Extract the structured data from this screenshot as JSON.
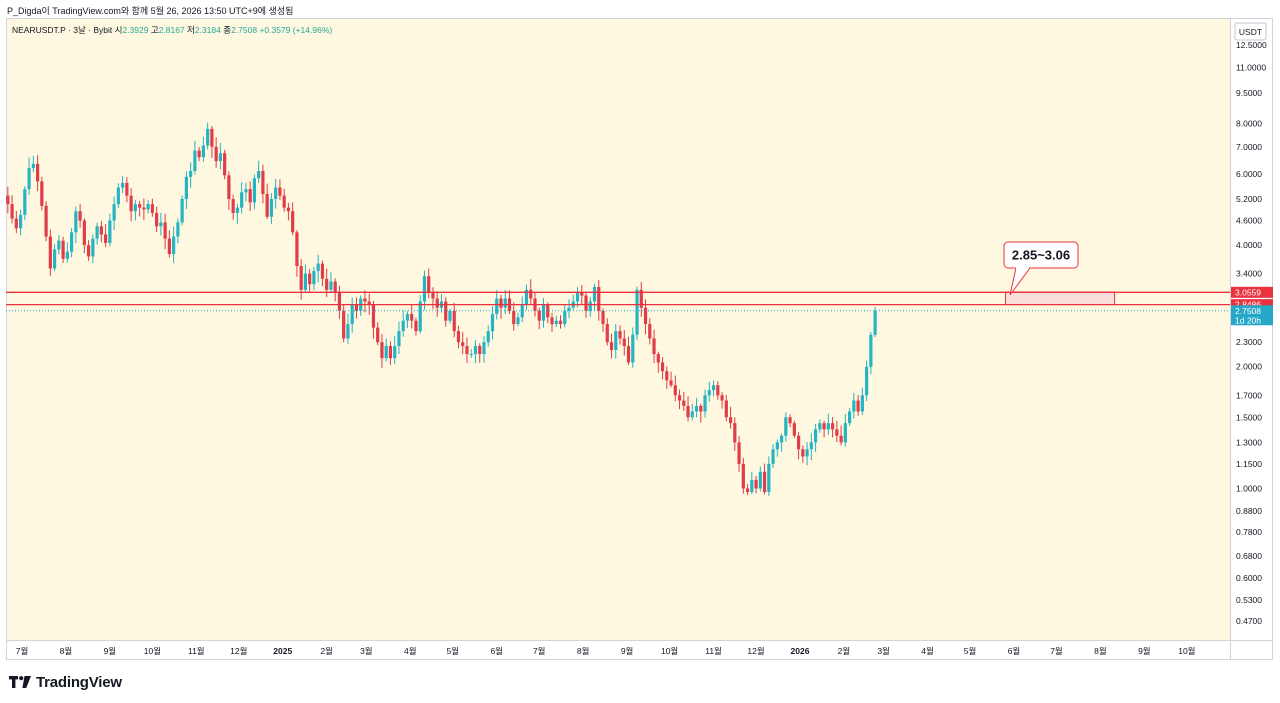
{
  "header": {
    "publish_line": "P_Digda이 TradingView.com와 함께 5월 26, 2026 13:50 UTC+9에 생성됨"
  },
  "legend": {
    "symbol": "NEARUSDT.P · 3날 · Bybit",
    "open_label": "시",
    "open": "2.3929",
    "high_label": "고",
    "high": "2.8167",
    "low_label": "저",
    "low": "2.3184",
    "close_label": "종",
    "close": "2.7508",
    "change": "+0.3579 (+14.96%)"
  },
  "brand": {
    "name": "TradingView"
  },
  "colors": {
    "background": "#fdf8df",
    "up": "#26b3c4",
    "down": "#e03c4a",
    "line": "#e8333f",
    "zone_fill": "#f9dcdc",
    "last_price": "#26a7c7"
  },
  "chart_data": {
    "type": "candlestick",
    "price_unit": "USDT",
    "y_scale": "log",
    "y_ticks": [
      "12.5000",
      "11.0000",
      "9.5000",
      "8.0000",
      "7.0000",
      "6.0000",
      "5.2000",
      "4.6000",
      "4.0000",
      "3.4000",
      "2.3000",
      "2.0000",
      "1.7000",
      "1.5000",
      "1.3000",
      "1.1500",
      "1.0000",
      "0.8800",
      "0.7800",
      "0.6800",
      "0.6000",
      "0.5300",
      "0.4700"
    ],
    "x_ticks": [
      "7월",
      "8월",
      "9월",
      "10월",
      "11월",
      "12월",
      "2025",
      "2월",
      "3월",
      "4월",
      "5월",
      "6월",
      "7월",
      "8월",
      "9월",
      "10월",
      "11월",
      "12월",
      "2026",
      "2월",
      "3월",
      "4월",
      "5월",
      "6월",
      "7월",
      "8월",
      "9월",
      "10월"
    ],
    "horizontal_lines": [
      {
        "price": 3.0559,
        "label": "3.0559"
      },
      {
        "price": 2.8486,
        "label": "2.8486"
      }
    ],
    "last_price": {
      "price": 2.7508,
      "label": "2.7508",
      "countdown": "1d 20h"
    },
    "zone": {
      "low": 2.85,
      "high": 3.06,
      "start": "2026-05-26",
      "end": "2026-08-11"
    },
    "annotation": {
      "text": "2.85~3.06"
    },
    "series_start": "2024-06-15",
    "candle_interval": "3D",
    "approx_closes": [
      5.13,
      5.3,
      5.05,
      4.65,
      4.4,
      4.75,
      5.5,
      6.2,
      6.35,
      5.75,
      5.0,
      4.2,
      3.5,
      3.9,
      4.1,
      3.7,
      3.85,
      4.3,
      4.85,
      4.6,
      4.0,
      3.75,
      4.15,
      4.45,
      4.25,
      4.05,
      4.6,
      5.05,
      5.55,
      5.7,
      5.3,
      4.85,
      5.05,
      4.95,
      4.9,
      5.05,
      4.8,
      4.45,
      4.55,
      4.15,
      3.8,
      4.2,
      4.55,
      5.2,
      5.9,
      6.1,
      6.85,
      6.6,
      7.05,
      7.75,
      7.0,
      6.45,
      6.75,
      5.95,
      5.2,
      4.8,
      4.95,
      5.4,
      5.5,
      5.1,
      5.85,
      6.1,
      5.35,
      4.7,
      5.2,
      5.55,
      5.3,
      4.95,
      4.85,
      4.3,
      3.55,
      3.1,
      3.4,
      3.2,
      3.45,
      3.6,
      3.3,
      3.1,
      3.25,
      3.05,
      2.75,
      2.35,
      2.55,
      2.85,
      2.75,
      2.95,
      2.9,
      2.85,
      2.5,
      2.3,
      2.1,
      2.25,
      2.1,
      2.25,
      2.45,
      2.6,
      2.7,
      2.6,
      2.45,
      2.9,
      3.35,
      3.05,
      2.95,
      2.8,
      2.9,
      2.6,
      2.75,
      2.45,
      2.3,
      2.25,
      2.15,
      2.15,
      2.25,
      2.15,
      2.3,
      2.45,
      2.7,
      2.95,
      2.8,
      2.95,
      2.75,
      2.55,
      2.65,
      2.85,
      3.1,
      2.95,
      2.75,
      2.6,
      2.85,
      2.65,
      2.55,
      2.6,
      2.55,
      2.75,
      2.8,
      2.9,
      3.05,
      3.0,
      2.75,
      2.9,
      3.15,
      2.75,
      2.55,
      2.3,
      2.2,
      2.45,
      2.35,
      2.25,
      2.05,
      2.4,
      3.1,
      2.8,
      2.55,
      2.35,
      2.15,
      2.05,
      1.95,
      1.85,
      1.8,
      1.7,
      1.65,
      1.6,
      1.5,
      1.55,
      1.6,
      1.55,
      1.7,
      1.75,
      1.8,
      1.7,
      1.65,
      1.5,
      1.45,
      1.3,
      1.15,
      1.0,
      0.98,
      1.05,
      1.0,
      1.1,
      0.98,
      1.15,
      1.25,
      1.3,
      1.35,
      1.5,
      1.45,
      1.35,
      1.25,
      1.2,
      1.25,
      1.3,
      1.4,
      1.45,
      1.4,
      1.45,
      1.4,
      1.35,
      1.3,
      1.45,
      1.55,
      1.65,
      1.55,
      1.7,
      2.0,
      2.4,
      2.75
    ]
  }
}
